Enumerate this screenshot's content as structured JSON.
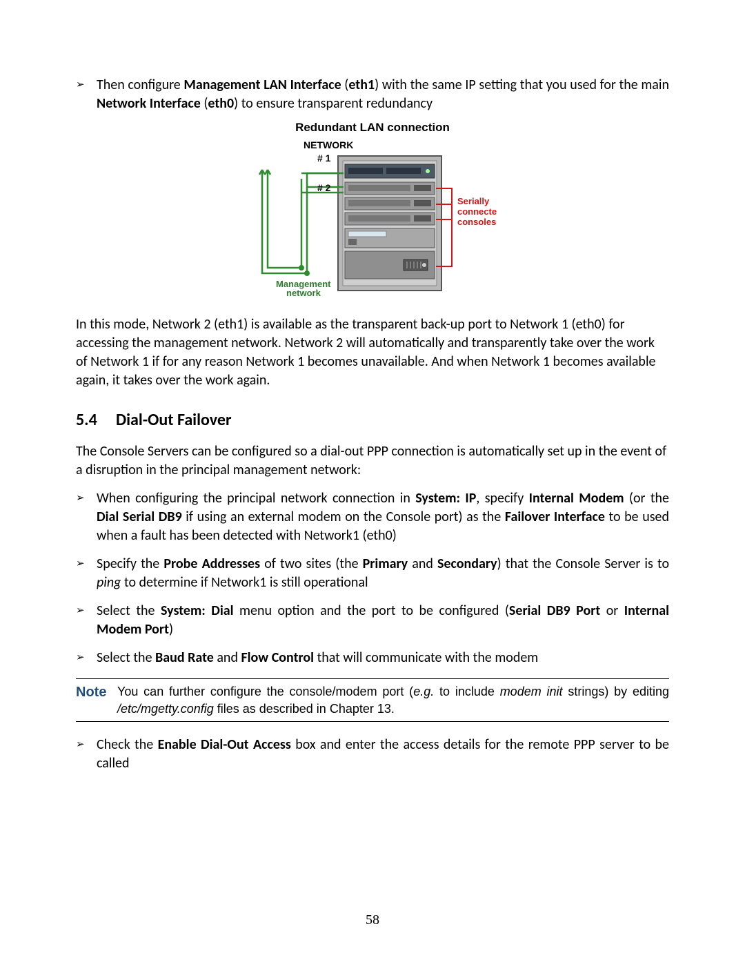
{
  "bullets_top": [
    {
      "html": "Then configure <b>Management LAN Interface</b> (<b>eth1</b>) with the same IP setting that you used for the main <b>Network Interface</b> (<b>eth0</b>) to ensure transparent redundancy"
    }
  ],
  "diagram": {
    "title": "Redundant  LAN connection",
    "network_label": "NETWORK",
    "port1": "# 1",
    "port2": "# 2",
    "mgmt_label1": "Management",
    "mgmt_label2": "network",
    "serial_label1": "Serially",
    "serial_label2": "connected",
    "serial_label3": "consoles",
    "colors": {
      "green": "#2e8b2e",
      "red": "#d01616",
      "rack_dark": "#7a7a7a",
      "rack_light": "#b8b8b8",
      "rack_border": "#555555",
      "switch_face": "#4d5a66",
      "text_green": "#2e7a2e",
      "text_red": "#d01616"
    }
  },
  "paragraph_after_diagram": "In this mode, Network 2 (eth1) is available as the transparent back-up port to Network 1 (eth0) for accessing the management network. Network 2 will automatically and transparently take over the work of Network 1 if for any reason Network 1 becomes unavailable. And when Network 1 becomes available again, it takes over the work again.",
  "section": {
    "number": "5.4",
    "title": "Dial-Out Failover"
  },
  "section_intro": "The Console Servers can be configured so a dial-out PPP connection is automatically set up in the event of a disruption in the principal management network:",
  "bullets_mid": [
    {
      "html": "When configuring the principal network connection in <b>System: IP</b>, specify <b>Internal Modem</b> (or the <b>Dial Serial DB9</b> if using an external modem on the Console port) as the <b>Failover Interface</b> to be used when a fault has been detected with Network1 (eth0)"
    },
    {
      "html": "Specify the <b>Probe Addresses</b> of two sites (the <b>Primary</b> and <b>Secondary</b>) that the Console Server is to <i>ping</i> to determine if Network1 is still operational"
    },
    {
      "html": "Select the <b>System: Dial</b> menu option and the port to be configured (<b>Serial DB9 Port</b> or <b>Internal Modem Port</b>)"
    },
    {
      "html": "Select the <b>Baud Rate</b> and <b>Flow Control</b> that will communicate with the modem"
    }
  ],
  "note": {
    "label": "Note",
    "html": "You can further configure the console/modem port (<i>e.g.</i> to include <i>modem init</i> strings) by editing <i>/etc/mgetty.config</i> files as described in Chapter 13."
  },
  "bullets_after_note": [
    {
      "html": "Check the <b>Enable Dial-Out Access</b> box and enter the access details for the remote PPP server to be called"
    }
  ],
  "page_number": "58"
}
